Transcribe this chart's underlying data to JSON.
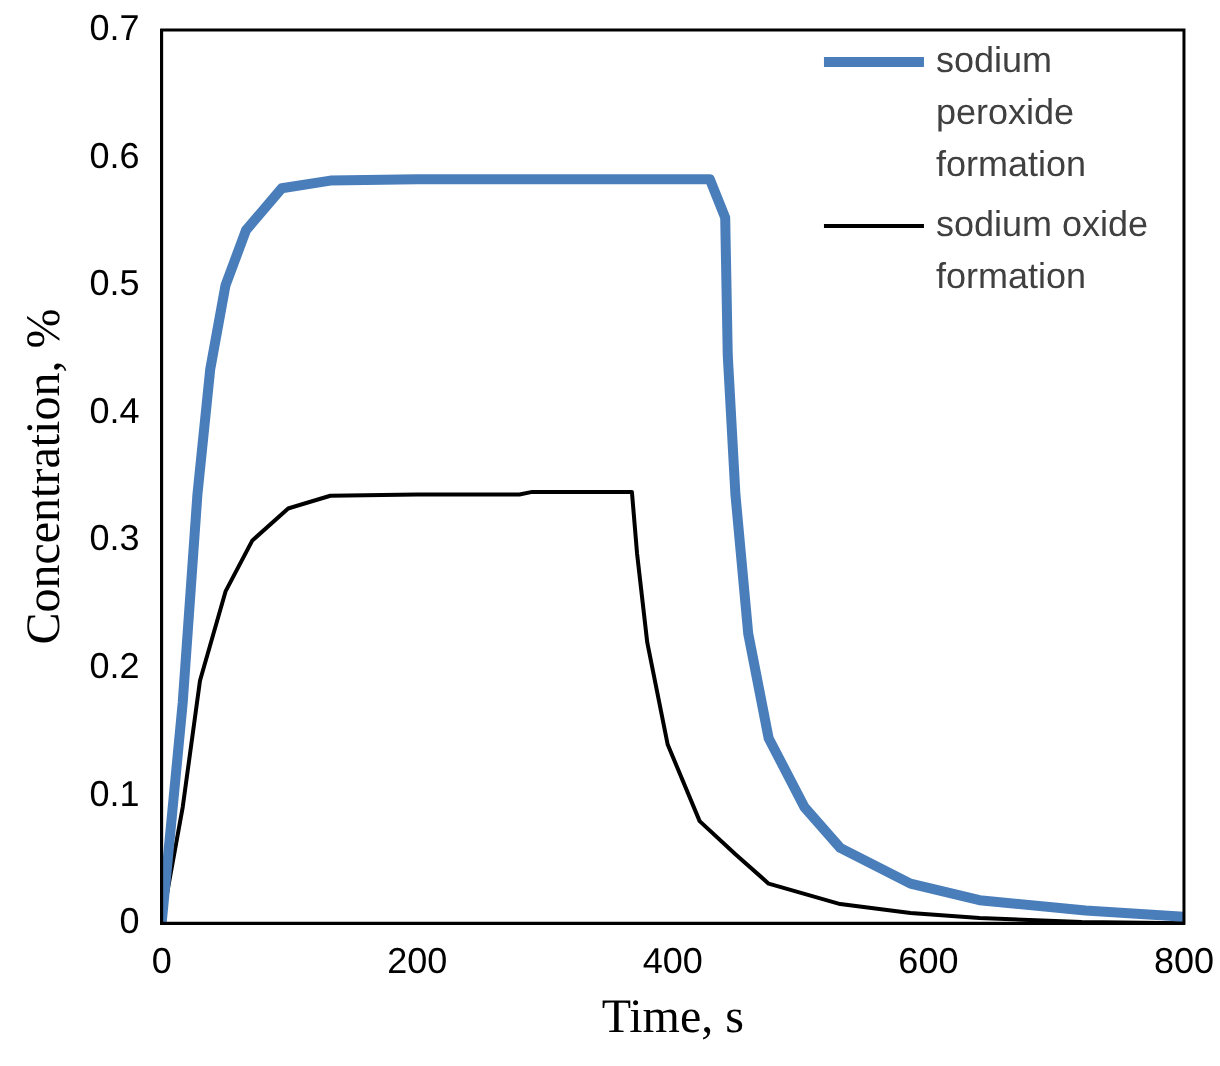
{
  "chart_data": {
    "type": "line",
    "xlabel": "Time, s",
    "ylabel": "Concentration, %",
    "xlim": [
      0,
      800
    ],
    "xticks": [
      0,
      200,
      400,
      600,
      800
    ],
    "ylim": [
      0,
      0.7
    ],
    "yticks": [
      0,
      0.1,
      0.2,
      0.3,
      0.4,
      0.5,
      0.6,
      0.7
    ],
    "grid": false,
    "legend": "top right",
    "marker": "none",
    "series": [
      {
        "name": "sodium peroxide formation",
        "color": "#4a7ebb",
        "x": [
          0,
          16.5,
          28,
          38,
          50,
          66,
          94,
          132,
          200,
          300,
          429,
          441,
          443,
          449,
          459,
          475,
          503,
          531,
          586,
          640,
          723,
          800
        ],
        "values": [
          0,
          0.173,
          0.336,
          0.434,
          0.5,
          0.543,
          0.576,
          0.582,
          0.583,
          0.583,
          0.583,
          0.553,
          0.445,
          0.336,
          0.227,
          0.145,
          0.091,
          0.059,
          0.031,
          0.018,
          0.01,
          0.005
        ]
      },
      {
        "name": "sodium oxide formation",
        "color": "#000000",
        "x": [
          0,
          16.5,
          30,
          50,
          71,
          99,
          132,
          200,
          280,
          290,
          368,
          372,
          380,
          396,
          421,
          449,
          475,
          531,
          586,
          640,
          720,
          800
        ],
        "values": [
          0,
          0.091,
          0.19,
          0.26,
          0.3,
          0.325,
          0.335,
          0.336,
          0.336,
          0.338,
          0.338,
          0.29,
          0.22,
          0.14,
          0.08,
          0.054,
          0.031,
          0.015,
          0.008,
          0.004,
          0.001,
          0
        ]
      }
    ]
  }
}
